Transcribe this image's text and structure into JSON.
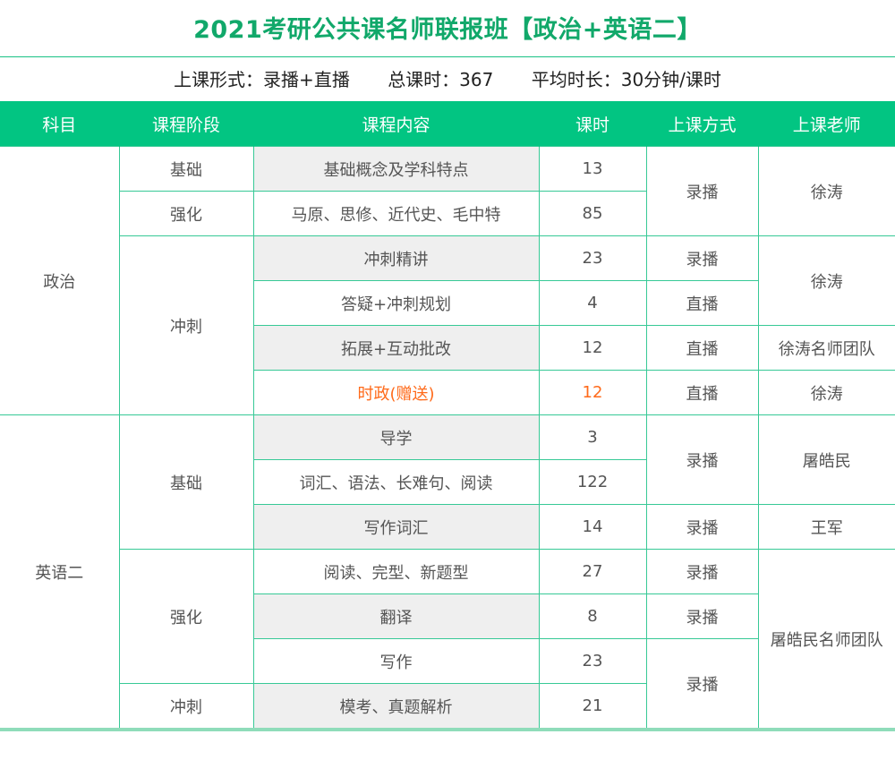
{
  "title": "2021考研公共课名师联报班【政治+英语二】",
  "info": {
    "mode": "上课形式：录播+直播",
    "total_hours": "总课时：367",
    "avg_length": "平均时长：30分钟/课时"
  },
  "colors": {
    "accent": "#02c582",
    "title": "#11a86a",
    "highlight": "#ff6a1a"
  },
  "table": {
    "headers": [
      "科目",
      "课程阶段",
      "课程内容",
      "课时",
      "上课方式",
      "上课老师"
    ],
    "subjects": {
      "politics": "政治",
      "english": "英语二"
    },
    "stages": {
      "basic": "基础",
      "strengthen": "强化",
      "sprint": "冲刺"
    },
    "rows": [
      {
        "content": "基础概念及学科特点",
        "hours": "13",
        "method": "录播",
        "teacher": "徐涛"
      },
      {
        "content": "马原、思修、近代史、毛中特",
        "hours": "85"
      },
      {
        "content": "冲刺精讲",
        "hours": "23",
        "method": "录播",
        "teacher": "徐涛"
      },
      {
        "content": "答疑+冲刺规划",
        "hours": "4",
        "method": "直播"
      },
      {
        "content": "拓展+互动批改",
        "hours": "12",
        "method": "直播",
        "teacher": "徐涛名师团队"
      },
      {
        "content": "时政(赠送)",
        "hours": "12",
        "method": "直播",
        "teacher": "徐涛"
      },
      {
        "content": "导学",
        "hours": "3",
        "method": "录播",
        "teacher": "屠皓民"
      },
      {
        "content": "词汇、语法、长难句、阅读",
        "hours": "122"
      },
      {
        "content": "写作词汇",
        "hours": "14",
        "method": "录播",
        "teacher": "王军"
      },
      {
        "content": "阅读、完型、新题型",
        "hours": "27",
        "method": "录播",
        "teacher": "屠皓民名师团队"
      },
      {
        "content": "翻译",
        "hours": "8",
        "method": "录播"
      },
      {
        "content": "写作",
        "hours": "23",
        "method": "录播"
      },
      {
        "content": "模考、真题解析",
        "hours": "21"
      }
    ]
  }
}
